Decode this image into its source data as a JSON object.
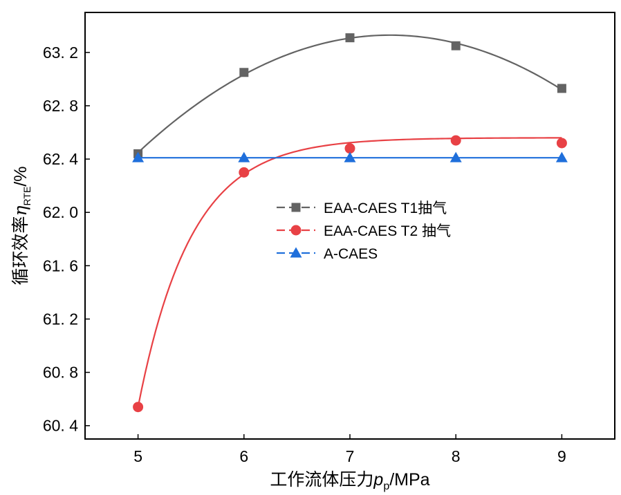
{
  "chart_data": {
    "type": "line",
    "x": [
      5,
      6,
      7,
      8,
      9
    ],
    "xlim": [
      4.5,
      9.5
    ],
    "ylim": [
      60.3,
      63.5
    ],
    "x_ticks": [
      5,
      6,
      7,
      8,
      9
    ],
    "x_tick_labels": [
      "5",
      "6",
      "7",
      "8",
      "9"
    ],
    "y_ticks": [
      60.4,
      60.8,
      61.2,
      61.6,
      62.0,
      62.4,
      62.8,
      63.2
    ],
    "y_tick_labels": [
      "60. 4",
      "60. 8",
      "61. 2",
      "61. 6",
      "62. 0",
      "62. 4",
      "62. 8",
      "63. 2"
    ],
    "xlabel": {
      "main": "工作流体压力",
      "symbol": "p",
      "subscript": "p",
      "unit": "/MPa"
    },
    "ylabel": {
      "main": "循环效率",
      "symbol": "η",
      "subscript": "RTE",
      "unit": "/%"
    },
    "grid": false,
    "legend_position": "center-right",
    "series": [
      {
        "name": "EAA-CAES  T1抽气",
        "color": "#636363",
        "marker": "square",
        "values": [
          62.44,
          63.05,
          63.31,
          63.25,
          62.93
        ],
        "fit_curve": true
      },
      {
        "name": "EAA-CAES T2 抽气",
        "color": "#e84145",
        "marker": "circle",
        "values": [
          60.54,
          62.3,
          62.48,
          62.54,
          62.52
        ],
        "fit_curve": true
      },
      {
        "name": "A-CAES",
        "color": "#1f6fdb",
        "marker": "triangle",
        "values": [
          62.41,
          62.41,
          62.41,
          62.41,
          62.41
        ],
        "fit_curve": false
      }
    ]
  }
}
